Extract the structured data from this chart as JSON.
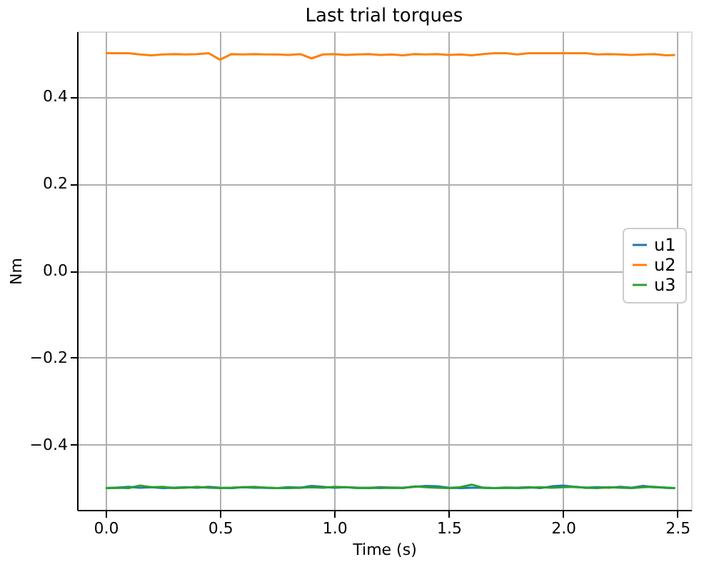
{
  "chart_data": {
    "type": "line",
    "title": "Last trial torques",
    "xlabel": "Time (s)",
    "ylabel": "Nm",
    "x": [
      0,
      0.05,
      0.1,
      0.15,
      0.2,
      0.25,
      0.3,
      0.35,
      0.4,
      0.45,
      0.5,
      0.55,
      0.6,
      0.65,
      0.7,
      0.75,
      0.8,
      0.85,
      0.9,
      0.95,
      1.0,
      1.05,
      1.1,
      1.15,
      1.2,
      1.25,
      1.3,
      1.35,
      1.4,
      1.45,
      1.5,
      1.55,
      1.6,
      1.65,
      1.7,
      1.75,
      1.8,
      1.85,
      1.9,
      1.95,
      2.0,
      2.05,
      2.1,
      2.15,
      2.2,
      2.25,
      2.3,
      2.35,
      2.4,
      2.45,
      2.49
    ],
    "series": [
      {
        "name": "u1",
        "color": "#1f77b4",
        "values": [
          -0.5,
          -0.499,
          -0.497,
          -0.499,
          -0.498,
          -0.5,
          -0.499,
          -0.498,
          -0.499,
          -0.497,
          -0.499,
          -0.5,
          -0.498,
          -0.499,
          -0.499,
          -0.5,
          -0.498,
          -0.499,
          -0.495,
          -0.497,
          -0.499,
          -0.498,
          -0.499,
          -0.5,
          -0.498,
          -0.499,
          -0.499,
          -0.497,
          -0.495,
          -0.496,
          -0.499,
          -0.5,
          -0.499,
          -0.499,
          -0.5,
          -0.499,
          -0.499,
          -0.498,
          -0.5,
          -0.496,
          -0.494,
          -0.497,
          -0.499,
          -0.498,
          -0.499,
          -0.497,
          -0.499,
          -0.495,
          -0.498,
          -0.499,
          -0.5
        ]
      },
      {
        "name": "u2",
        "color": "#ff7f0e",
        "values": [
          0.5,
          0.5,
          0.5,
          0.497,
          0.495,
          0.497,
          0.498,
          0.497,
          0.498,
          0.5,
          0.485,
          0.498,
          0.497,
          0.498,
          0.497,
          0.497,
          0.496,
          0.498,
          0.488,
          0.497,
          0.498,
          0.496,
          0.497,
          0.498,
          0.496,
          0.497,
          0.495,
          0.498,
          0.497,
          0.498,
          0.496,
          0.497,
          0.495,
          0.498,
          0.5,
          0.5,
          0.497,
          0.5,
          0.5,
          0.5,
          0.5,
          0.5,
          0.5,
          0.497,
          0.498,
          0.497,
          0.496,
          0.497,
          0.498,
          0.495,
          0.496
        ]
      },
      {
        "name": "u3",
        "color": "#2ca02c",
        "values": [
          -0.5,
          -0.499,
          -0.5,
          -0.494,
          -0.498,
          -0.497,
          -0.5,
          -0.499,
          -0.497,
          -0.499,
          -0.5,
          -0.499,
          -0.498,
          -0.497,
          -0.499,
          -0.5,
          -0.5,
          -0.499,
          -0.498,
          -0.499,
          -0.497,
          -0.498,
          -0.5,
          -0.499,
          -0.5,
          -0.499,
          -0.5,
          -0.496,
          -0.498,
          -0.499,
          -0.5,
          -0.498,
          -0.492,
          -0.499,
          -0.5,
          -0.499,
          -0.5,
          -0.499,
          -0.498,
          -0.499,
          -0.498,
          -0.497,
          -0.499,
          -0.5,
          -0.498,
          -0.499,
          -0.5,
          -0.498,
          -0.497,
          -0.499,
          -0.5
        ]
      }
    ],
    "xlim": [
      -0.125,
      2.56
    ],
    "ylim": [
      -0.55,
      0.55
    ],
    "xticks": [
      {
        "value": 0,
        "label": "0.0"
      },
      0.5,
      {
        "value": 1,
        "label": "1.0"
      },
      1.5,
      {
        "value": 2,
        "label": "2.0"
      },
      2.5
    ],
    "yticks": [
      {
        "value": -0.4,
        "label": "−0.4"
      },
      {
        "value": -0.2,
        "label": "−0.2"
      },
      {
        "value": 0,
        "label": "0.0"
      },
      0.2,
      0.4
    ],
    "grid": true,
    "legend": "right",
    "line_style": "solid"
  }
}
